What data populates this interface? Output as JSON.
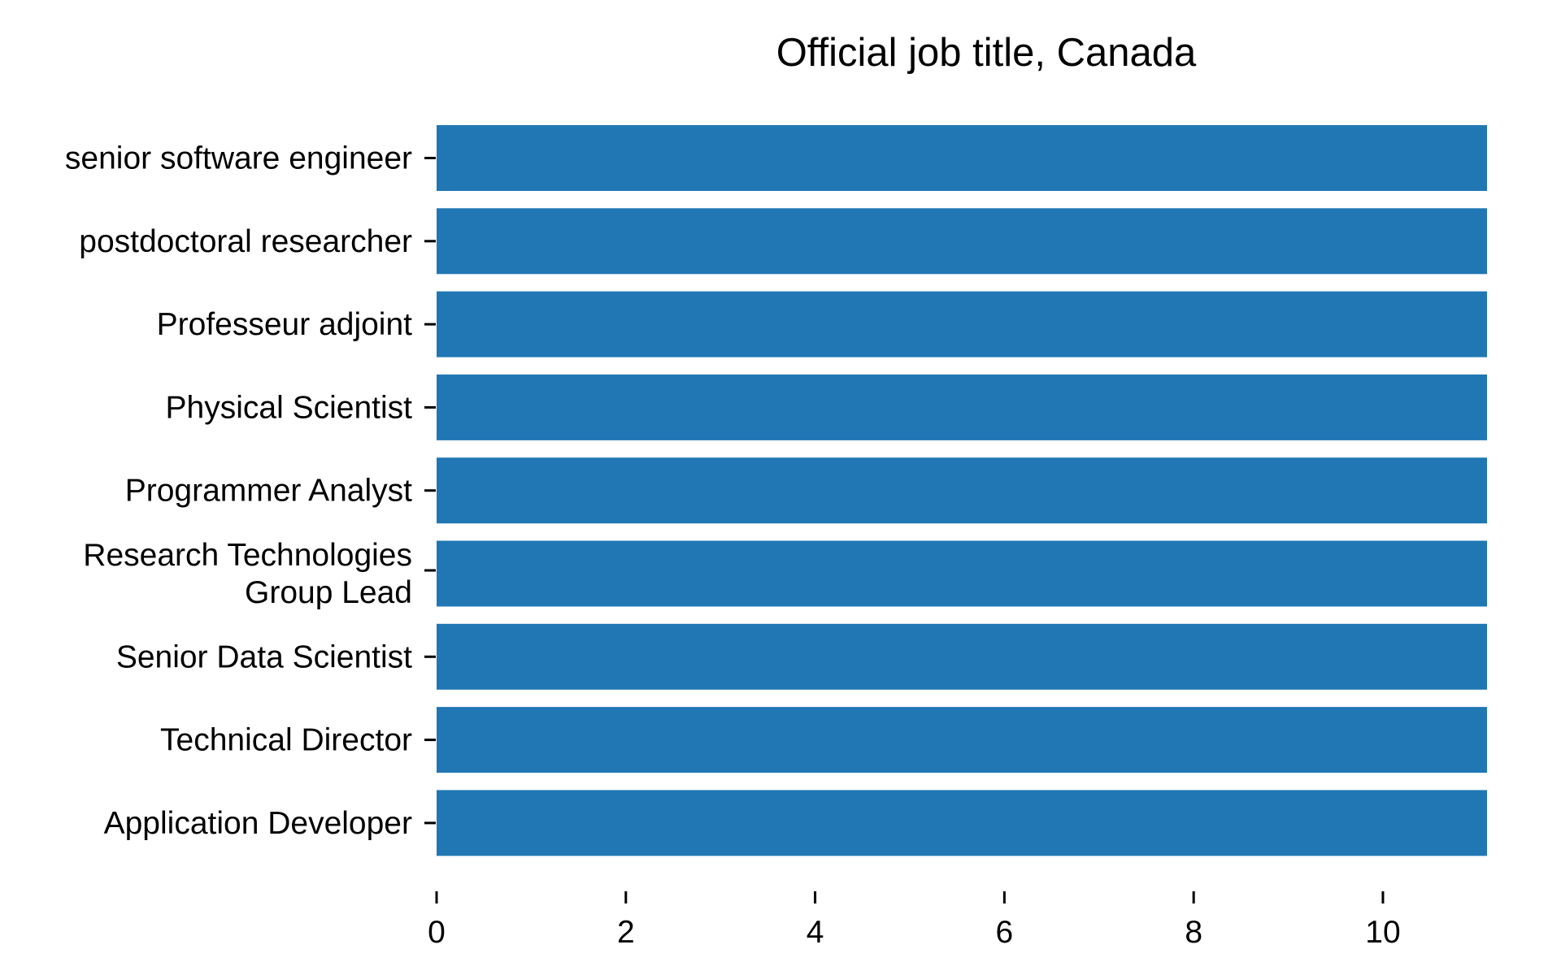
{
  "chart_data": {
    "type": "bar",
    "orientation": "horizontal",
    "title": "Official job title, Canada",
    "xlabel": "",
    "ylabel": "",
    "categories": [
      "senior software engineer",
      "postdoctoral researcher",
      "Professeur adjoint",
      "Physical Scientist",
      "Programmer Analyst",
      "Research Technologies Group Lead",
      "Senior Data Scientist",
      "Technical Director",
      "Application Developer"
    ],
    "category_lines": [
      [
        "senior software engineer"
      ],
      [
        "postdoctoral researcher"
      ],
      [
        "Professeur adjoint"
      ],
      [
        "Physical Scientist"
      ],
      [
        "Programmer Analyst"
      ],
      [
        "Research Technologies",
        "Group Lead"
      ],
      [
        "Senior Data Scientist"
      ],
      [
        "Technical Director"
      ],
      [
        "Application Developer"
      ]
    ],
    "values": [
      11.1,
      11.1,
      11.1,
      11.1,
      11.1,
      11.1,
      11.1,
      11.1,
      11.1
    ],
    "xlim": [
      0,
      11.1
    ],
    "xticks": [
      0,
      2,
      4,
      6,
      8,
      10
    ],
    "grid": false,
    "legend": "none",
    "bar_color": "#2077b4"
  }
}
